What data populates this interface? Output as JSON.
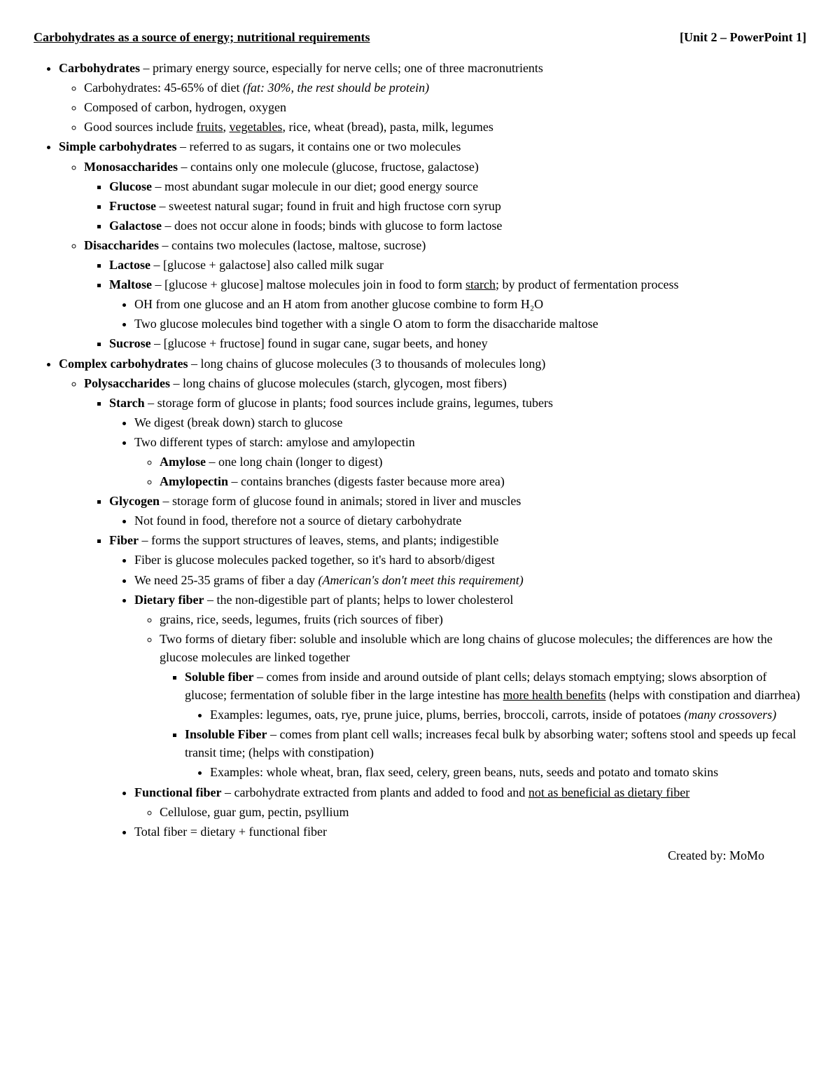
{
  "header": {
    "left": "Carbohydrates as a source of energy; nutritional requirements",
    "right": "[Unit 2 – PowerPoint 1]"
  },
  "t": {
    "carbs_label": "Carbohydrates",
    "carbs_text": " – primary energy source, especially for nerve cells; one of three macronutrients",
    "carbs_pct": "Carbohydrates: 45-65% of diet ",
    "carbs_pct_i": "(fat: 30%, the rest should be protein)",
    "composed": "Composed of carbon, hydrogen, oxygen",
    "sources_pre": "Good sources include ",
    "sources_u1": "fruits",
    "sources_mid": ", ",
    "sources_u2": "vegetables",
    "sources_post": ", rice, wheat (bread), pasta, milk, legumes",
    "simple_label": "Simple carbohydrates",
    "simple_text": " – referred to as sugars, it contains one or two molecules",
    "mono_label": "Monosaccharides",
    "mono_text": " – contains only one molecule (glucose, fructose, galactose)",
    "glucose_label": "Glucose",
    "glucose_text": " – most abundant sugar molecule in our diet; good energy source",
    "fructose_label": "Fructose",
    "fructose_text": " – sweetest natural sugar; found in fruit and high fructose corn syrup",
    "galactose_label": "Galactose",
    "galactose_text": " – does not occur alone in foods; binds with glucose to form lactose",
    "di_label": "Disaccharides",
    "di_text": " – contains two molecules (lactose, maltose, sucrose)",
    "lactose_label": "Lactose",
    "lactose_text": " – [glucose + galactose] also called milk sugar",
    "maltose_label": "Maltose",
    "maltose_text1": " – [glucose + glucose] maltose molecules join in food to form ",
    "maltose_u": "starch",
    "maltose_text2": "; by product of fermentation process",
    "maltose_sub1": "OH from one glucose and an H atom from another glucose combine to form H₂O",
    "maltose_sub2": "Two glucose molecules bind together with a single O atom to form the disaccharide maltose",
    "sucrose_label": "Sucrose",
    "sucrose_text": " – [glucose + fructose] found in sugar cane, sugar beets, and honey",
    "complex_label": "Complex carbohydrates",
    "complex_text": " – long chains of glucose molecules (3 to thousands of molecules long)",
    "poly_label": "Polysaccharides",
    "poly_text": " – long chains of glucose molecules (starch, glycogen, most fibers)",
    "starch_label": "Starch",
    "starch_text": " – storage form of glucose in plants; food sources include grains, legumes, tubers",
    "starch_sub1": "We digest (break down) starch to glucose",
    "starch_sub2": "Two different types of starch: amylose and amylopectin",
    "amylose_label": "Amylose",
    "amylose_text": " – one long chain (longer to digest)",
    "amylopectin_label": "Amylopectin",
    "amylopectin_text": " – contains branches (digests faster because more area)",
    "glycogen_label": "Glycogen",
    "glycogen_text": " – storage form of glucose found in animals; stored in liver and muscles",
    "glycogen_sub1": "Not found in food, therefore not a source of dietary carbohydrate",
    "fiber_label": "Fiber",
    "fiber_text": " – forms the support structures of leaves, stems, and plants; indigestible",
    "fiber_sub1": "Fiber is glucose molecules packed together, so it's hard to absorb/digest",
    "fiber_sub2a": "We need 25-35 grams of fiber a day ",
    "fiber_sub2i": "(American's don't meet this requirement)",
    "dietfiber_label": "Dietary fiber",
    "dietfiber_text": " – the non-digestible part of plants; helps to lower cholesterol",
    "dietfiber_sub1": "grains, rice, seeds, legumes, fruits (rich sources of fiber)",
    "dietfiber_sub2": "Two forms of dietary fiber: soluble and insoluble which are long chains of glucose molecules; the differences are how the glucose molecules are linked together",
    "sol_label": "Soluble fiber",
    "sol_text1": " – comes from inside and around outside of plant cells; delays stomach emptying; slows absorption of glucose; fermentation of soluble fiber in the large intestine has ",
    "sol_u": "more health benefits",
    "sol_text2": " (helps with constipation and diarrhea)",
    "sol_ex_pre": "Examples: legumes, oats, rye, prune juice, plums, berries, broccoli, carrots, inside of potatoes ",
    "sol_ex_i": "(many crossovers)",
    "insol_label": "Insoluble Fiber",
    "insol_text": " – comes from plant cell walls; increases fecal bulk by absorbing water; softens stool and speeds up fecal transit time; (helps with constipation)",
    "insol_ex": "Examples: whole wheat, bran, flax seed, celery, green beans, nuts, seeds and potato and tomato skins",
    "funcfiber_label": "Functional fiber",
    "funcfiber_text1": " – carbohydrate extracted from plants and added to food and ",
    "funcfiber_u": "not as beneficial as dietary fiber",
    "funcfiber_sub": "Cellulose, guar gum, pectin, psyllium",
    "totalfiber": "Total fiber = dietary + functional fiber"
  },
  "footer": "Created by: MoMo"
}
